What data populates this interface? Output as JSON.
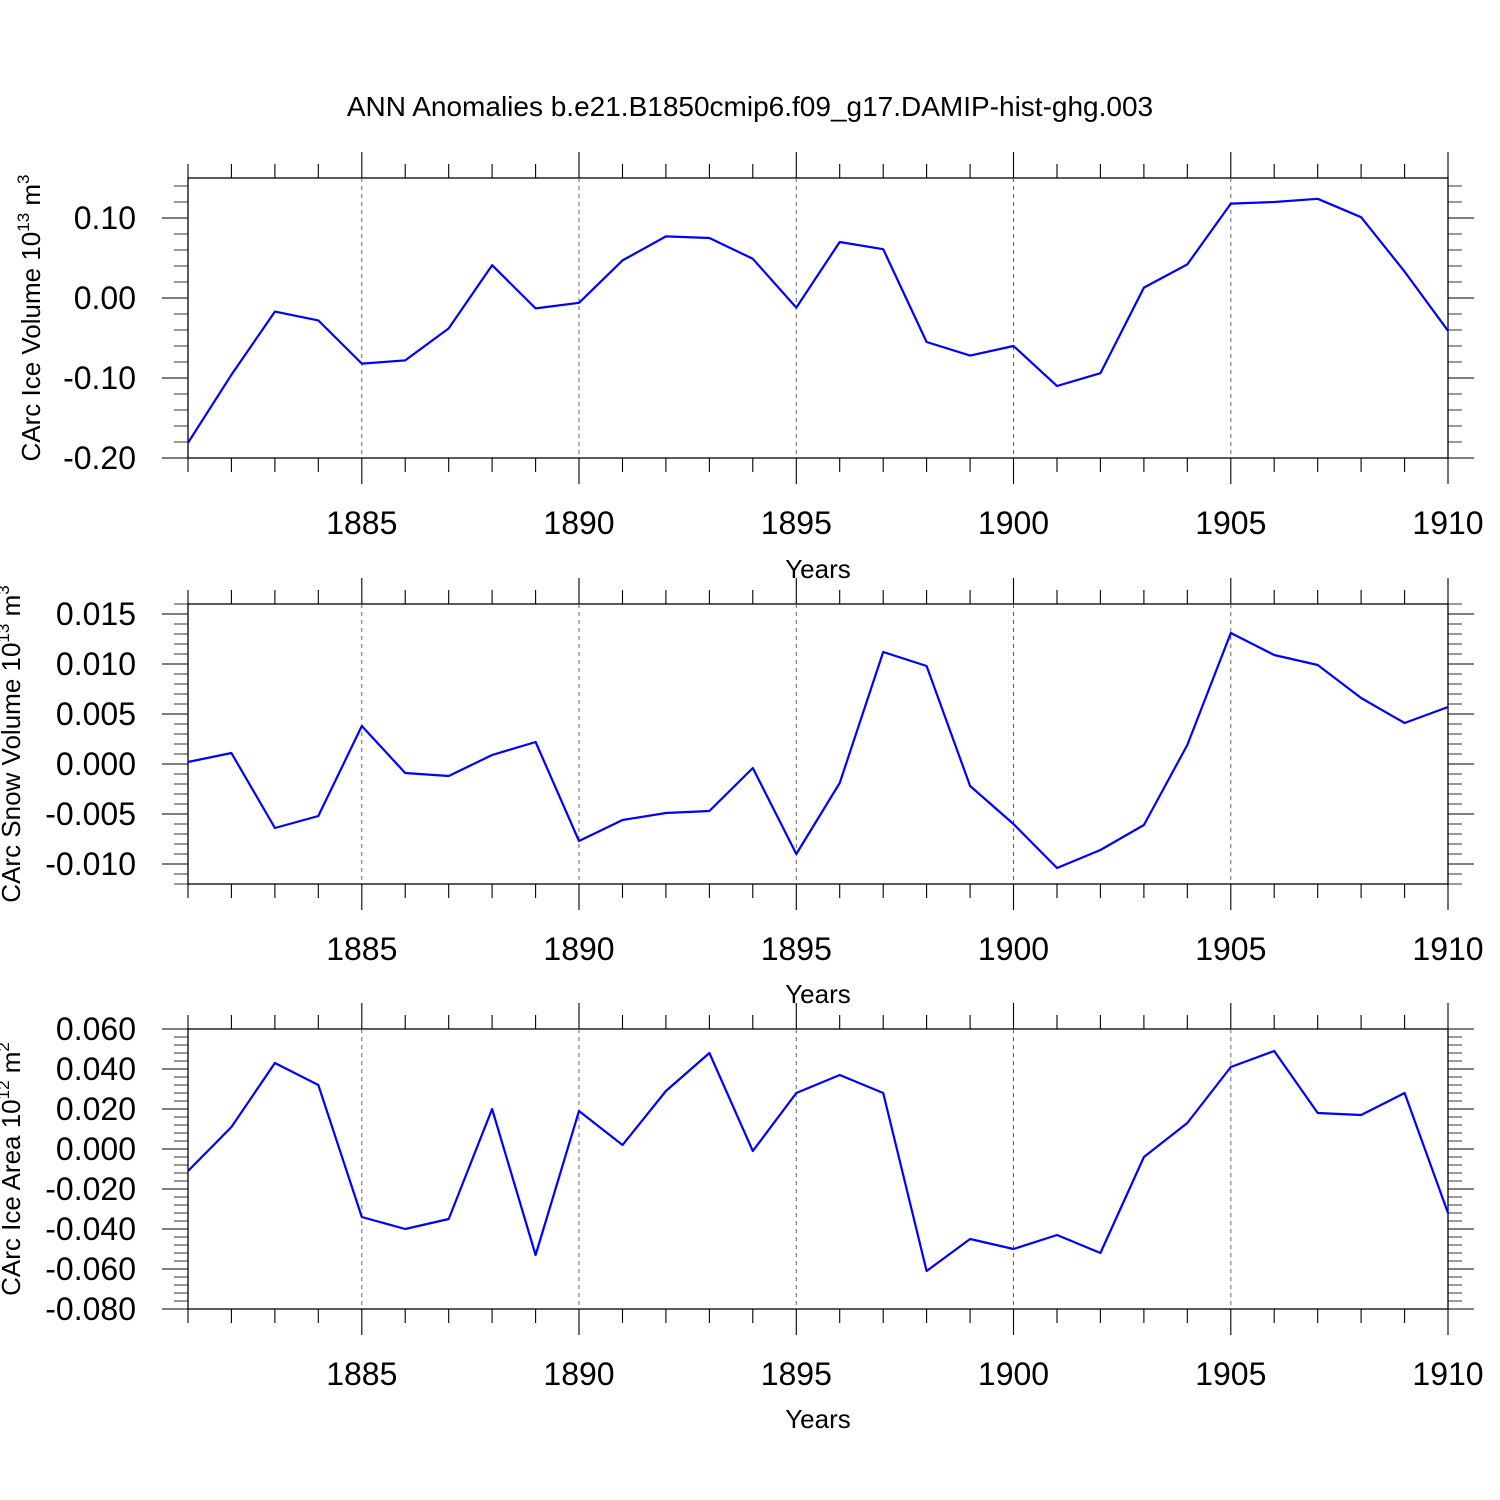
{
  "title": "ANN Anomalies b.e21.B1850cmip6.f09_g17.DAMIP-hist-ghg.003",
  "line_color": "#0000ff",
  "chart_data": [
    {
      "type": "line",
      "title": "ANN Anomalies b.e21.B1850cmip6.f09_g17.DAMIP-hist-ghg.003",
      "xlabel": "Years",
      "ylabel": "CArc Ice Volume 10",
      "ylabel_exp": "13",
      "ylabel_unit": " m",
      "ylabel_unit_exp": "3",
      "xlim": [
        1881,
        1910
      ],
      "ylim": [
        -0.2,
        0.15
      ],
      "x_ticks": [
        1885,
        1890,
        1895,
        1900,
        1905,
        1910
      ],
      "y_ticks": [
        -0.2,
        -0.1,
        0.0,
        0.1
      ],
      "y_tick_labels": [
        "-0.20",
        "-0.10",
        "0.00",
        "0.10"
      ],
      "grid": "dashed vertical at major x ticks",
      "series": [
        {
          "name": "CArc Ice Volume",
          "x": [
            1881,
            1882,
            1883,
            1884,
            1885,
            1886,
            1887,
            1888,
            1889,
            1890,
            1891,
            1892,
            1893,
            1894,
            1895,
            1896,
            1897,
            1898,
            1899,
            1900,
            1901,
            1902,
            1903,
            1904,
            1905,
            1906,
            1907,
            1908,
            1909,
            1910
          ],
          "values": [
            -0.181,
            -0.096,
            -0.017,
            -0.028,
            -0.082,
            -0.078,
            -0.038,
            0.041,
            -0.013,
            -0.006,
            0.047,
            0.077,
            0.075,
            0.049,
            -0.012,
            0.07,
            0.061,
            -0.055,
            -0.072,
            -0.06,
            -0.11,
            -0.094,
            0.013,
            0.042,
            0.118,
            0.12,
            0.124,
            0.101,
            0.033,
            -0.041
          ]
        }
      ]
    },
    {
      "type": "line",
      "xlabel": "Years",
      "ylabel": "CArc Snow Volume 10",
      "ylabel_exp": "13",
      "ylabel_unit": " m",
      "ylabel_unit_exp": "3",
      "xlim": [
        1881,
        1910
      ],
      "ylim": [
        -0.012,
        0.016
      ],
      "x_ticks": [
        1885,
        1890,
        1895,
        1900,
        1905,
        1910
      ],
      "y_ticks": [
        -0.01,
        -0.005,
        0.0,
        0.005,
        0.01,
        0.015
      ],
      "y_tick_labels": [
        "-0.010",
        "-0.005",
        "0.000",
        "0.005",
        "0.010",
        "0.015"
      ],
      "grid": "dashed vertical at major x ticks",
      "series": [
        {
          "name": "CArc Snow Volume",
          "x": [
            1881,
            1882,
            1883,
            1884,
            1885,
            1886,
            1887,
            1888,
            1889,
            1890,
            1891,
            1892,
            1893,
            1894,
            1895,
            1896,
            1897,
            1898,
            1899,
            1900,
            1901,
            1902,
            1903,
            1904,
            1905,
            1906,
            1907,
            1908,
            1909,
            1910
          ],
          "values": [
            0.0002,
            0.0011,
            -0.0064,
            -0.0052,
            0.0038,
            -0.0009,
            -0.0012,
            0.0009,
            0.0022,
            -0.0077,
            -0.0056,
            -0.0049,
            -0.0047,
            -0.0004,
            -0.009,
            -0.0019,
            0.0112,
            0.0098,
            -0.0022,
            -0.006,
            -0.0104,
            -0.0086,
            -0.0061,
            0.0019,
            0.0131,
            0.0109,
            0.0099,
            0.0066,
            0.0041,
            0.0057
          ]
        }
      ]
    },
    {
      "type": "line",
      "xlabel": "Years",
      "ylabel": "CArc Ice Area 10",
      "ylabel_exp": "12",
      "ylabel_unit": " m",
      "ylabel_unit_exp": "2",
      "xlim": [
        1881,
        1910
      ],
      "ylim": [
        -0.08,
        0.06
      ],
      "x_ticks": [
        1885,
        1890,
        1895,
        1900,
        1905,
        1910
      ],
      "y_ticks": [
        -0.08,
        -0.06,
        -0.04,
        -0.02,
        0.0,
        0.02,
        0.04,
        0.06
      ],
      "y_tick_labels": [
        "-0.080",
        "-0.060",
        "-0.040",
        "-0.020",
        "0.000",
        "0.020",
        "0.040",
        "0.060"
      ],
      "grid": "dashed vertical at major x ticks",
      "series": [
        {
          "name": "CArc Ice Area",
          "x": [
            1881,
            1882,
            1883,
            1884,
            1885,
            1886,
            1887,
            1888,
            1889,
            1890,
            1891,
            1892,
            1893,
            1894,
            1895,
            1896,
            1897,
            1898,
            1899,
            1900,
            1901,
            1902,
            1903,
            1904,
            1905,
            1906,
            1907,
            1908,
            1909,
            1910
          ],
          "values": [
            -0.011,
            0.011,
            0.043,
            0.032,
            -0.034,
            -0.04,
            -0.035,
            0.02,
            -0.053,
            0.019,
            0.002,
            0.029,
            0.048,
            -0.001,
            0.028,
            0.037,
            0.028,
            -0.061,
            -0.045,
            -0.05,
            -0.043,
            -0.052,
            -0.004,
            0.013,
            0.041,
            0.049,
            0.018,
            0.017,
            0.028,
            -0.032
          ]
        }
      ]
    }
  ]
}
